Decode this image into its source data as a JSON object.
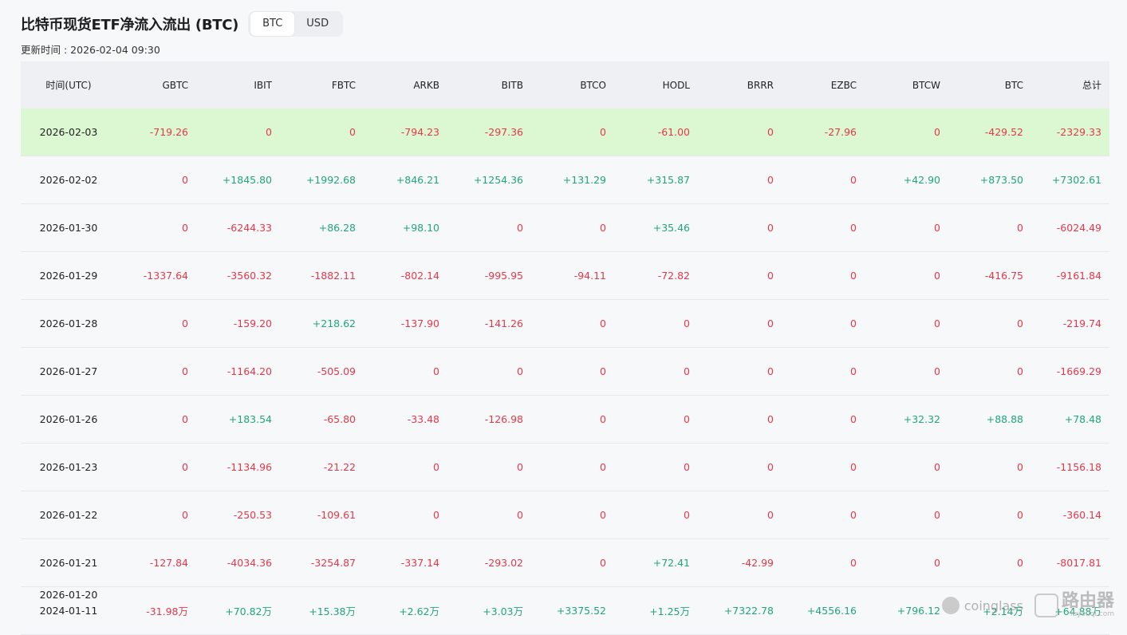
{
  "header": {
    "title": "比特币现货ETF净流入流出 (BTC)",
    "toggle_options": [
      "BTC",
      "USD"
    ],
    "active_toggle": "BTC",
    "updated_label": "更新时间 : 2026-02-04 09:30"
  },
  "table": {
    "columns": [
      "时间(UTC)",
      "GBTC",
      "IBIT",
      "FBTC",
      "ARKB",
      "BITB",
      "BTCO",
      "HODL",
      "BRRR",
      "EZBC",
      "BTCW",
      "BTC",
      "总计"
    ],
    "rows": [
      {
        "date": "2026-02-03",
        "highlight": true,
        "values": [
          "-719.26",
          "0",
          "0",
          "-794.23",
          "-297.36",
          "0",
          "-61.00",
          "0",
          "-27.96",
          "0",
          "-429.52",
          "-2329.33"
        ]
      },
      {
        "date": "2026-02-02",
        "highlight": false,
        "values": [
          "0",
          "+1845.80",
          "+1992.68",
          "+846.21",
          "+1254.36",
          "+131.29",
          "+315.87",
          "0",
          "0",
          "+42.90",
          "+873.50",
          "+7302.61"
        ]
      },
      {
        "date": "2026-01-30",
        "highlight": false,
        "values": [
          "0",
          "-6244.33",
          "+86.28",
          "+98.10",
          "0",
          "0",
          "+35.46",
          "0",
          "0",
          "0",
          "0",
          "-6024.49"
        ]
      },
      {
        "date": "2026-01-29",
        "highlight": false,
        "values": [
          "-1337.64",
          "-3560.32",
          "-1882.11",
          "-802.14",
          "-995.95",
          "-94.11",
          "-72.82",
          "0",
          "0",
          "0",
          "-416.75",
          "-9161.84"
        ]
      },
      {
        "date": "2026-01-28",
        "highlight": false,
        "values": [
          "0",
          "-159.20",
          "+218.62",
          "-137.90",
          "-141.26",
          "0",
          "0",
          "0",
          "0",
          "0",
          "0",
          "-219.74"
        ]
      },
      {
        "date": "2026-01-27",
        "highlight": false,
        "values": [
          "0",
          "-1164.20",
          "-505.09",
          "0",
          "0",
          "0",
          "0",
          "0",
          "0",
          "0",
          "0",
          "-1669.29"
        ]
      },
      {
        "date": "2026-01-26",
        "highlight": false,
        "values": [
          "0",
          "+183.54",
          "-65.80",
          "-33.48",
          "-126.98",
          "0",
          "0",
          "0",
          "0",
          "+32.32",
          "+88.88",
          "+78.48"
        ]
      },
      {
        "date": "2026-01-23",
        "highlight": false,
        "values": [
          "0",
          "-1134.96",
          "-21.22",
          "0",
          "0",
          "0",
          "0",
          "0",
          "0",
          "0",
          "0",
          "-1156.18"
        ]
      },
      {
        "date": "2026-01-22",
        "highlight": false,
        "values": [
          "0",
          "-250.53",
          "-109.61",
          "0",
          "0",
          "0",
          "0",
          "0",
          "0",
          "0",
          "0",
          "-360.14"
        ]
      },
      {
        "date": "2026-01-21",
        "highlight": false,
        "values": [
          "-127.84",
          "-4034.36",
          "-3254.87",
          "-337.14",
          "-293.02",
          "0",
          "+72.41",
          "-42.99",
          "0",
          "0",
          "0",
          "-8017.81"
        ]
      },
      {
        "date": "2026-01-20",
        "date2": "2024-01-11",
        "highlight": false,
        "values": [
          "-31.98万",
          "+70.82万",
          "+15.38万",
          "+2.62万",
          "+3.03万",
          "+3375.52",
          "+1.25万",
          "+7322.78",
          "+4556.16",
          "+796.12",
          "+2.14万",
          "+64.88万"
        ]
      }
    ]
  },
  "watermark": {
    "brand": "coinglass",
    "router_text": "路由器",
    "router_site": "luyouqi.com"
  },
  "colors": {
    "negative": "#e6384a",
    "positive": "#20a67a",
    "highlight_row": "#dcf8d3",
    "header_bg": "#eef0f3"
  }
}
